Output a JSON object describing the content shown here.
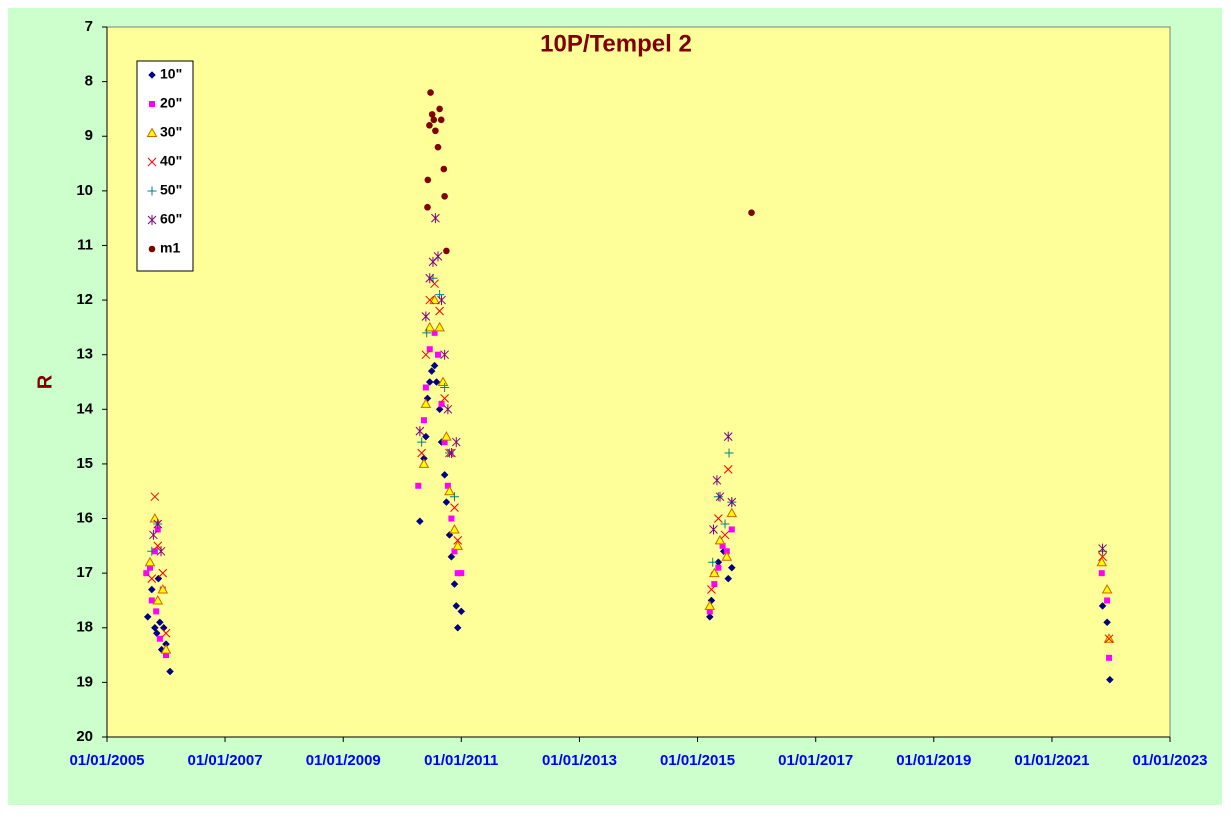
{
  "chart_data": {
    "type": "scatter",
    "title": "10P/Tempel 2",
    "y_label": "R",
    "y_reversed": true,
    "ylim": [
      7,
      20
    ],
    "yticks": [
      7,
      8,
      9,
      10,
      11,
      12,
      13,
      14,
      15,
      16,
      17,
      18,
      19,
      20
    ],
    "xlim": [
      "2005-01-01",
      "2023-01-01"
    ],
    "xticks": [
      {
        "value": "2005-01-01",
        "label": "01/01/2005"
      },
      {
        "value": "2007-01-01",
        "label": "01/01/2007"
      },
      {
        "value": "2009-01-01",
        "label": "01/01/2009"
      },
      {
        "value": "2011-01-01",
        "label": "01/01/2011"
      },
      {
        "value": "2013-01-01",
        "label": "01/01/2013"
      },
      {
        "value": "2015-01-01",
        "label": "01/01/2015"
      },
      {
        "value": "2017-01-01",
        "label": "01/01/2017"
      },
      {
        "value": "2019-01-01",
        "label": "01/01/2019"
      },
      {
        "value": "2021-01-01",
        "label": "01/01/2021"
      },
      {
        "value": "2023-01-01",
        "label": "01/01/2023"
      }
    ],
    "legend": "top-left",
    "series": [
      {
        "name": "10\"",
        "marker": "diamond",
        "color": "#000080",
        "x": [
          "2005-09-10",
          "2005-10-05",
          "2005-10-24",
          "2005-11-05",
          "2005-11-15",
          "2005-11-24",
          "2005-12-05",
          "2005-12-18",
          "2006-01-01",
          "2006-01-26",
          "2010-04-20",
          "2010-05-15",
          "2010-05-27",
          "2010-06-06",
          "2010-06-20",
          "2010-07-02",
          "2010-07-20",
          "2010-08-01",
          "2010-08-20",
          "2010-09-01",
          "2010-09-20",
          "2010-10-01",
          "2010-10-20",
          "2010-11-01",
          "2010-11-20",
          "2010-12-01",
          "2010-12-10",
          "2011-01-01",
          "2015-03-18",
          "2015-03-28",
          "2015-04-15",
          "2015-05-10",
          "2015-06-12",
          "2015-07-10",
          "2015-08-01",
          "2021-11-10",
          "2021-12-08",
          "2021-12-25"
        ],
        "values": [
          17.8,
          17.3,
          18.0,
          18.1,
          17.1,
          17.9,
          18.4,
          18.0,
          18.3,
          18.8,
          16.05,
          14.9,
          14.5,
          13.8,
          13.5,
          13.3,
          13.2,
          13.5,
          14.0,
          14.6,
          15.2,
          15.7,
          16.3,
          16.7,
          17.2,
          17.6,
          18.0,
          17.7,
          17.8,
          17.5,
          17.0,
          16.8,
          16.6,
          17.1,
          16.9,
          17.6,
          17.9,
          18.95
        ]
      },
      {
        "name": "20\"",
        "marker": "square",
        "color": "#ff00ff",
        "x": [
          "2005-09-01",
          "2005-09-24",
          "2005-10-05",
          "2005-10-24",
          "2005-11-01",
          "2005-11-11",
          "2005-11-24",
          "2005-12-12",
          "2006-01-01",
          "2010-04-10",
          "2010-05-15",
          "2010-05-27",
          "2010-06-20",
          "2010-07-20",
          "2010-08-10",
          "2010-09-01",
          "2010-09-20",
          "2010-10-10",
          "2010-11-01",
          "2010-11-20",
          "2010-12-10",
          "2011-01-01",
          "2015-03-18",
          "2015-04-15",
          "2015-05-10",
          "2015-06-05",
          "2015-07-01",
          "2015-08-01",
          "2021-11-05",
          "2021-12-08",
          "2021-12-20"
        ],
        "values": [
          17.0,
          16.9,
          17.5,
          16.6,
          17.7,
          16.2,
          18.2,
          17.3,
          18.5,
          15.4,
          14.2,
          13.6,
          12.9,
          12.6,
          13.0,
          13.9,
          14.6,
          15.4,
          16.0,
          16.6,
          17.0,
          17.0,
          17.7,
          17.2,
          16.9,
          16.5,
          16.6,
          16.2,
          17.0,
          17.5,
          18.55
        ]
      },
      {
        "name": "30\"",
        "marker": "triangle",
        "color": "#ffff00",
        "stroke": "#cc6600",
        "x": [
          "2005-09-24",
          "2005-10-24",
          "2005-11-11",
          "2005-12-12",
          "2006-01-01",
          "2010-05-15",
          "2010-05-27",
          "2010-06-20",
          "2010-07-20",
          "2010-08-20",
          "2010-09-10",
          "2010-10-01",
          "2010-10-20",
          "2010-11-20",
          "2010-12-10",
          "2015-03-18",
          "2015-04-15",
          "2015-05-20",
          "2015-07-01",
          "2015-08-01",
          "2021-11-05",
          "2021-12-08",
          "2021-12-20"
        ],
        "values": [
          16.8,
          16.0,
          17.5,
          17.3,
          18.4,
          15.0,
          13.9,
          12.5,
          12.0,
          12.5,
          13.5,
          14.5,
          15.5,
          16.2,
          16.5,
          17.6,
          17.0,
          16.4,
          16.7,
          15.9,
          16.8,
          17.3,
          18.2
        ]
      },
      {
        "name": "40\"",
        "marker": "x",
        "color": "#ff0000",
        "x": [
          "2005-10-05",
          "2005-10-24",
          "2005-11-11",
          "2005-12-12",
          "2006-01-01",
          "2010-05-01",
          "2010-05-27",
          "2010-06-20",
          "2010-07-20",
          "2010-08-20",
          "2010-09-20",
          "2010-10-20",
          "2010-11-20",
          "2010-12-10",
          "2015-03-28",
          "2015-05-10",
          "2015-06-20",
          "2015-07-10",
          "2021-11-10",
          "2021-12-20"
        ],
        "values": [
          17.1,
          15.6,
          16.5,
          17.0,
          18.1,
          14.8,
          13.0,
          12.0,
          11.7,
          12.2,
          13.8,
          14.8,
          15.8,
          16.4,
          17.3,
          16.0,
          16.3,
          15.1,
          16.7,
          18.2
        ]
      },
      {
        "name": "50\"",
        "marker": "plus",
        "color": "#008080",
        "x": [
          "2005-10-05",
          "2005-11-11",
          "2010-05-01",
          "2010-06-01",
          "2010-07-10",
          "2010-08-20",
          "2010-09-20",
          "2010-10-20",
          "2010-11-20",
          "2015-04-05",
          "2015-05-10",
          "2015-06-20",
          "2015-07-15",
          "2015-08-01",
          "2021-11-10"
        ],
        "values": [
          16.6,
          16.1,
          14.6,
          12.6,
          11.6,
          11.9,
          13.6,
          14.8,
          15.6,
          16.8,
          15.6,
          16.1,
          14.8,
          15.7,
          16.6
        ]
      },
      {
        "name": "60\"",
        "marker": "asterisk",
        "color": "#800080",
        "x": [
          "2005-10-15",
          "2005-11-11",
          "2005-12-01",
          "2010-04-20",
          "2010-05-27",
          "2010-06-20",
          "2010-07-10",
          "2010-07-25",
          "2010-08-10",
          "2010-09-01",
          "2010-09-20",
          "2010-10-10",
          "2010-11-01",
          "2010-12-01",
          "2015-04-10",
          "2015-05-01",
          "2015-05-20",
          "2015-07-10",
          "2015-08-01",
          "2021-11-10"
        ],
        "values": [
          16.3,
          16.1,
          16.6,
          14.4,
          12.3,
          11.6,
          11.3,
          10.5,
          11.2,
          12.0,
          13.0,
          14.0,
          14.8,
          14.6,
          16.2,
          15.3,
          15.6,
          14.5,
          15.7,
          16.55
        ]
      },
      {
        "name": "m1",
        "marker": "circle",
        "color": "#800000",
        "x": [
          "2010-06-06",
          "2010-06-08",
          "2010-06-18",
          "2010-06-25",
          "2010-07-05",
          "2010-07-15",
          "2010-07-25",
          "2010-08-10",
          "2010-08-20",
          "2010-08-30",
          "2010-09-15",
          "2010-09-20",
          "2010-10-01",
          "2015-12-01"
        ],
        "values": [
          10.3,
          9.8,
          8.8,
          8.2,
          8.6,
          8.7,
          8.9,
          9.2,
          8.5,
          8.7,
          9.6,
          10.1,
          11.1,
          10.4
        ]
      }
    ]
  }
}
